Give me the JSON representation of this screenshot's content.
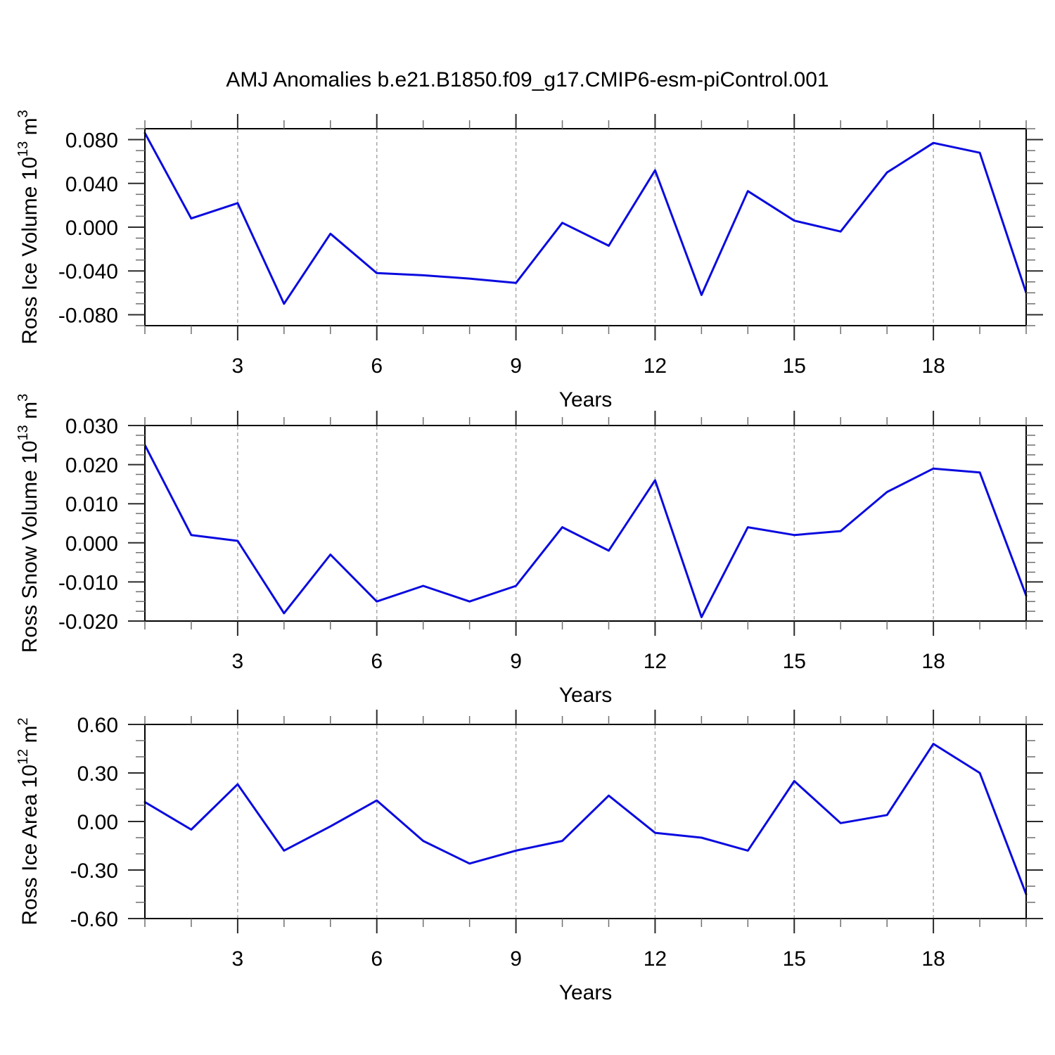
{
  "title": "AMJ Anomalies b.e21.B1850.f09_g17.CMIP6-esm-piControl.001",
  "colors": {
    "line": "#0a0ae0",
    "grid": "#a8a8a8",
    "frame": "#000000",
    "tick_major": "#2b2b2b",
    "tick_minor": "#6f6f6f",
    "text": "#000000"
  },
  "x_axis": {
    "label": "Years",
    "years": [
      1,
      2,
      3,
      4,
      5,
      6,
      7,
      8,
      9,
      10,
      11,
      12,
      13,
      14,
      15,
      16,
      17,
      18,
      19,
      20
    ],
    "major_ticks": [
      3,
      6,
      9,
      12,
      15,
      18
    ],
    "major_tick_labels": [
      "3",
      "6",
      "9",
      "12",
      "15",
      "18"
    ]
  },
  "grid_x": [
    3,
    6,
    9,
    12,
    15,
    18
  ],
  "chart_data": [
    {
      "type": "line",
      "id": "ross-ice-volume",
      "ylabel": "Ross Ice Volume 10^13 m^3",
      "ylabel_parts": [
        {
          "text": "Ross Ice Volume 10"
        },
        {
          "text": "13",
          "sup": true
        },
        {
          "text": " m"
        },
        {
          "text": "3",
          "sup": true
        }
      ],
      "xlabel": "Years",
      "xlim": [
        1,
        20
      ],
      "x": [
        1,
        2,
        3,
        4,
        5,
        6,
        7,
        8,
        9,
        10,
        11,
        12,
        13,
        14,
        15,
        16,
        17,
        18,
        19,
        20
      ],
      "values": [
        0.086,
        0.008,
        0.022,
        -0.07,
        -0.006,
        -0.042,
        -0.044,
        -0.047,
        -0.051,
        0.004,
        -0.017,
        0.052,
        -0.062,
        0.033,
        0.006,
        -0.004,
        0.05,
        0.077,
        0.068,
        -0.06
      ],
      "ylim": [
        -0.09,
        0.09
      ],
      "y_major_ticks": [
        0.08,
        0.04,
        0.0,
        -0.04,
        -0.08
      ],
      "y_tick_labels": [
        "0.080",
        "0.040",
        "0.000",
        "-0.040",
        "-0.080"
      ],
      "y_minor_step": 0.01,
      "grid": true,
      "legend": "none"
    },
    {
      "type": "line",
      "id": "ross-snow-volume",
      "ylabel": "Ross Snow Volume 10^13 m^3",
      "ylabel_parts": [
        {
          "text": "Ross Snow Volume 10"
        },
        {
          "text": "13",
          "sup": true
        },
        {
          "text": " m"
        },
        {
          "text": "3",
          "sup": true
        }
      ],
      "xlabel": "Years",
      "xlim": [
        1,
        20
      ],
      "x": [
        1,
        2,
        3,
        4,
        5,
        6,
        7,
        8,
        9,
        10,
        11,
        12,
        13,
        14,
        15,
        16,
        17,
        18,
        19,
        20
      ],
      "values": [
        0.025,
        0.002,
        0.0005,
        -0.018,
        -0.003,
        -0.015,
        -0.011,
        -0.015,
        -0.011,
        0.004,
        -0.002,
        0.016,
        -0.019,
        0.004,
        0.002,
        0.003,
        0.013,
        0.019,
        0.018,
        -0.0135
      ],
      "ylim": [
        -0.02,
        0.03
      ],
      "y_major_ticks": [
        0.03,
        0.02,
        0.01,
        0.0,
        -0.01,
        -0.02
      ],
      "y_tick_labels": [
        "0.030",
        "0.020",
        "0.010",
        "0.000",
        "-0.010",
        "-0.020"
      ],
      "y_minor_step": 0.0025,
      "grid": true,
      "legend": "none"
    },
    {
      "type": "line",
      "id": "ross-ice-area",
      "ylabel": "Ross Ice Area 10^12 m^2",
      "ylabel_parts": [
        {
          "text": "Ross Ice Area 10"
        },
        {
          "text": "12",
          "sup": true
        },
        {
          "text": " m"
        },
        {
          "text": "2",
          "sup": true
        }
      ],
      "xlabel": "Years",
      "xlim": [
        1,
        20
      ],
      "x": [
        1,
        2,
        3,
        4,
        5,
        6,
        7,
        8,
        9,
        10,
        11,
        12,
        13,
        14,
        15,
        16,
        17,
        18,
        19,
        20
      ],
      "values": [
        0.12,
        -0.05,
        0.23,
        -0.18,
        -0.03,
        0.13,
        -0.12,
        -0.26,
        -0.18,
        -0.12,
        0.16,
        -0.07,
        -0.1,
        -0.18,
        0.25,
        -0.01,
        0.04,
        0.48,
        0.3,
        -0.45
      ],
      "ylim": [
        -0.6,
        0.6
      ],
      "y_major_ticks": [
        0.6,
        0.3,
        0.0,
        -0.3,
        -0.6
      ],
      "y_tick_labels": [
        "0.60",
        "0.30",
        "0.00",
        "-0.30",
        "-0.60"
      ],
      "y_minor_step": 0.1,
      "grid": true,
      "legend": "none"
    }
  ]
}
